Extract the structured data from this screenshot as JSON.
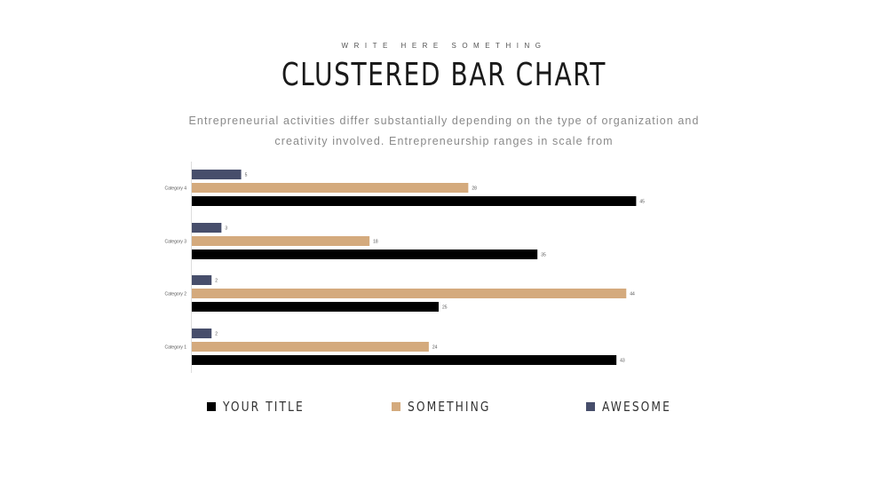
{
  "header": {
    "eyebrow": "WRITE HERE SOMETHING",
    "title": "CLUSTERED BAR CHART",
    "subtitle": "Entrepreneurial activities differ substantially depending on the type of organization and creativity involved. Entrepreneurship ranges in scale from"
  },
  "colors": {
    "your_title": "#000000",
    "something": "#d4aa7d",
    "awesome": "#474e6b"
  },
  "chart_data": {
    "type": "bar",
    "orientation": "horizontal",
    "categories": [
      "Category 1",
      "Category 2",
      "Category 3",
      "Category 4"
    ],
    "series": [
      {
        "name": "YOUR TITLE",
        "values": [
          43,
          25,
          35,
          45
        ]
      },
      {
        "name": "SOMETHING",
        "values": [
          24,
          44,
          18,
          28
        ]
      },
      {
        "name": "AWESOME",
        "values": [
          2,
          2,
          3,
          5
        ]
      }
    ],
    "value_labels": {
      "YOUR TITLE": [
        "43",
        "25",
        "35",
        "45"
      ],
      "SOMETHING": [
        "24",
        "44",
        "18",
        "28"
      ],
      "AWESOME": [
        "2",
        "2",
        "3",
        "5"
      ]
    },
    "xlim": [
      0,
      50
    ],
    "grid": false,
    "legend_position": "bottom"
  },
  "legend": [
    {
      "key": "your_title",
      "label": "YOUR TITLE"
    },
    {
      "key": "something",
      "label": "SOMETHING"
    },
    {
      "key": "awesome",
      "label": "AWESOME"
    }
  ]
}
